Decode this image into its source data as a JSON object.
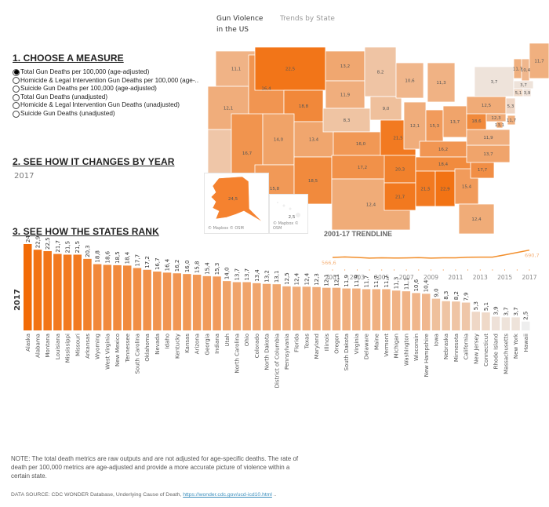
{
  "header": {
    "title": "Gun Violence in the US",
    "tab": "Trends by State"
  },
  "sections": {
    "measure_title": "1. CHOOSE A MEASURE",
    "year_title": "2. SEE HOW IT CHANGES BY YEAR",
    "rank_title": "3. SEE HOW THE STATES RANK"
  },
  "measures": [
    {
      "label": "Total Gun Deaths per 100,000 (age-adjusted)",
      "selected": true
    },
    {
      "label": "Homicide & Legal Intervention Gun Deaths per 100,000 (age-..",
      "selected": false
    },
    {
      "label": "Suicide Gun Deaths per 100,000 (age-adjusted)",
      "selected": false
    },
    {
      "label": "Total Gun Deaths (unadjusted)",
      "selected": false
    },
    {
      "label": "Homicide & Legal Intervention Gun Deaths (unadjusted)",
      "selected": false
    },
    {
      "label": "Suicide Gun Deaths (unadjusted)",
      "selected": false
    }
  ],
  "selected_year": "2017",
  "map": {
    "credit": "© Mapbox © OSM",
    "labels": {
      "WA": "11,1",
      "OR": "12,1",
      "CA": "7,9",
      "ID": "16,4",
      "NV": "16,7",
      "MT": "22,5",
      "WY": "18,8",
      "UT": "14,0",
      "AZ": "15,8",
      "CO": "13,4",
      "NM": "18,5",
      "ND": "13,2",
      "SD": "11,9",
      "NE": "8,3",
      "KS": "16,0",
      "OK": "17,2",
      "TX": "12,4",
      "MN": "8,2",
      "IA": "9,0",
      "MO": "21,5",
      "AR": "20,3",
      "LA": "21,7",
      "WI": "10,6",
      "IL": "12,1",
      "MI": "11,3",
      "IN": "15,3",
      "OH": "13,7",
      "KY": "16,2",
      "TN": "18,4",
      "MS": "21,5",
      "AL": "22,9",
      "GA": "15,4",
      "FL": "12,4",
      "SC": "17,7",
      "NC": "13,7",
      "VA": "11,9",
      "WV": "18,6",
      "PA": "12,5",
      "NY": "3,7",
      "VT": "11,7",
      "NH": "10,4",
      "ME": "11,7",
      "MA": "3,7",
      "CT": "5,1",
      "RI": "3,9",
      "NJ": "5,3",
      "DE": "11,7",
      "MD": "12,3",
      "DC": "13,1",
      "AK": "24,5",
      "HI": "2,5"
    }
  },
  "trend": {
    "title": "2001-17 TRENDLINE",
    "start_label": "566,6",
    "end_label": "690,7",
    "years": [
      "2001",
      "2003",
      "2005",
      "2007",
      "2009",
      "2011",
      "2013",
      "2015",
      "2017"
    ],
    "color": "#f28e2b"
  },
  "note": "NOTE: The total death metrics are raw outputs and are not adjusted for age-specific deaths. The rate of death per 100,000 metrics are age-adjusted and provide a more accurate picture of violence within a certain state.",
  "source": {
    "prefix": "DATA SOURCE: CDC WONDER Database, Underlying Cause of Death, ",
    "link": "https://wonder.cdc.gov/ucd-icd10.html",
    "suffix": " .."
  },
  "chart_data": [
    {
      "type": "bar",
      "title": "3. SEE HOW THE STATES RANK",
      "ylabel": "2017",
      "xlabel": "",
      "ylim": [
        0,
        24.5
      ],
      "color_low": "#eeeeee",
      "color_high": "#f26b06",
      "categories": [
        "Alaska",
        "Alabama",
        "Montana",
        "Louisiana",
        "Mississippi",
        "Missouri",
        "Arkansas",
        "Wyoming",
        "West Virginia",
        "New Mexico",
        "Tennessee",
        "South Carolina",
        "Oklahoma",
        "Nevada",
        "Idaho",
        "Kentucky",
        "Kansas",
        "Arizona",
        "Georgia",
        "Indiana",
        "Utah",
        "North Carolina",
        "Ohio",
        "Colorado",
        "North Dakota",
        "District of Columbia",
        "Pennsylvania",
        "Florida",
        "Texas",
        "Maryland",
        "Illinois",
        "Oregon",
        "South Dakota",
        "Virginia",
        "Delaware",
        "Maine",
        "Vermont",
        "Michigan",
        "Washington",
        "Wisconsin",
        "New Hampshire",
        "Iowa",
        "Nebraska",
        "Minnesota",
        "California",
        "New Jersey",
        "Connecticut",
        "Rhode Island",
        "Massachusetts",
        "New York",
        "Hawaii"
      ],
      "values": [
        24.5,
        22.9,
        22.5,
        21.7,
        21.5,
        21.5,
        20.3,
        18.8,
        18.6,
        18.5,
        18.4,
        17.7,
        17.2,
        16.7,
        16.4,
        16.2,
        16.0,
        15.8,
        15.4,
        15.3,
        14.0,
        13.7,
        13.7,
        13.4,
        13.2,
        13.1,
        12.5,
        12.4,
        12.4,
        12.3,
        12.1,
        12.1,
        11.9,
        11.9,
        11.7,
        11.7,
        11.7,
        11.3,
        11.1,
        10.6,
        10.4,
        9.0,
        8.3,
        8.2,
        7.9,
        5.3,
        5.1,
        3.9,
        3.7,
        3.7,
        2.5
      ],
      "value_labels": [
        "24,5",
        "22,9",
        "22,5",
        "21,7",
        "21,5",
        "21,5",
        "20,3",
        "18,8",
        "18,6",
        "18,5",
        "18,4",
        "17,7",
        "17,2",
        "16,7",
        "16,4",
        "16,2",
        "16,0",
        "15,8",
        "15,4",
        "15,3",
        "14,0",
        "13,7",
        "13,7",
        "13,4",
        "13,2",
        "13,1",
        "12,5",
        "12,4",
        "12,4",
        "12,3",
        "12,1",
        "12,1",
        "11,9",
        "11,9",
        "11,7",
        "11,7",
        "11,7",
        "11,3",
        "11,1",
        "10,6",
        "10,4",
        "9,0",
        "8,3",
        "8,2",
        "7,9",
        "5,3",
        "5,1",
        "3,9",
        "3,7",
        "3,7",
        "2,5"
      ]
    },
    {
      "type": "line",
      "title": "2001-17 TRENDLINE",
      "x": [
        2001,
        2002,
        2003,
        2004,
        2005,
        2006,
        2007,
        2008,
        2009,
        2010,
        2011,
        2012,
        2013,
        2014,
        2015,
        2016,
        2017
      ],
      "values": [
        566.6,
        575,
        566,
        555,
        560,
        557,
        558,
        563,
        555,
        560,
        560,
        570,
        572,
        572,
        610,
        650,
        690.7
      ],
      "tick_labels": [
        "2001",
        "2003",
        "2005",
        "2007",
        "2009",
        "2011",
        "2013",
        "2015",
        "2017"
      ],
      "annotations": [
        "566,6",
        "690,7"
      ],
      "grid": false
    }
  ]
}
